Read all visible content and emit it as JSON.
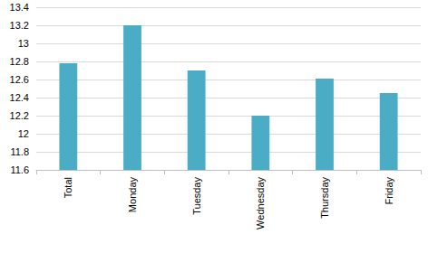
{
  "chart_data": {
    "type": "bar",
    "categories": [
      "Total",
      "Monday",
      "Tuesday",
      "Wednesday",
      "Thursday",
      "Friday"
    ],
    "values": [
      12.78,
      13.2,
      12.7,
      12.2,
      12.61,
      12.45
    ],
    "color": "#4bacc6",
    "ylim": [
      11.6,
      13.4
    ],
    "yticks": [
      11.6,
      11.8,
      12,
      12.2,
      12.4,
      12.6,
      12.8,
      13,
      13.2,
      13.4
    ],
    "grid": true
  }
}
